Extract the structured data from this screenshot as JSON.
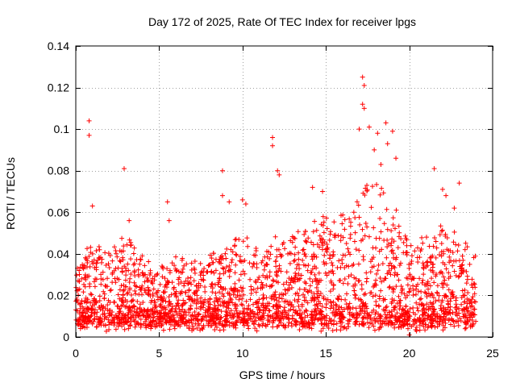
{
  "chart_data": {
    "type": "scatter",
    "title": "Day 172 of 2025, Rate Of TEC Index for receiver lpgs",
    "xlabel": "GPS time / hours",
    "ylabel": "ROTI / TECUs",
    "xlim": [
      0,
      25
    ],
    "ylim": [
      0,
      0.14
    ],
    "xticks": [
      0,
      5,
      10,
      15,
      20,
      25
    ],
    "yticks": [
      0,
      0.02,
      0.04,
      0.06,
      0.08,
      0.1,
      0.12,
      0.14
    ],
    "xtick_labels": [
      "0",
      "5",
      "10",
      "15",
      "20",
      "25"
    ],
    "ytick_labels": [
      "0",
      "0.02",
      "0.04",
      "0.06",
      "0.08",
      "0.1",
      "0.12",
      "0.14"
    ],
    "grid": true,
    "marker": "plus",
    "color": "#ff0000",
    "envelope": {
      "description": "approximate upper extent of the dense point cloud (hours, TECU)",
      "x": [
        0,
        1,
        2,
        3,
        4,
        5,
        6,
        7,
        8,
        9,
        10,
        11,
        12,
        13,
        14,
        15,
        16,
        17,
        18,
        19,
        20,
        21,
        22,
        23,
        24
      ],
      "y": [
        0.03,
        0.045,
        0.04,
        0.05,
        0.035,
        0.03,
        0.035,
        0.032,
        0.035,
        0.04,
        0.045,
        0.04,
        0.045,
        0.047,
        0.05,
        0.06,
        0.055,
        0.07,
        0.075,
        0.065,
        0.04,
        0.045,
        0.05,
        0.045,
        0.035
      ],
      "lower": 0.004,
      "median": 0.015
    },
    "outliers": [
      {
        "x": 0.8,
        "y": 0.104
      },
      {
        "x": 0.8,
        "y": 0.097
      },
      {
        "x": 1.0,
        "y": 0.063
      },
      {
        "x": 2.9,
        "y": 0.081
      },
      {
        "x": 3.2,
        "y": 0.056
      },
      {
        "x": 5.5,
        "y": 0.065
      },
      {
        "x": 5.6,
        "y": 0.056
      },
      {
        "x": 8.8,
        "y": 0.08
      },
      {
        "x": 8.8,
        "y": 0.068
      },
      {
        "x": 9.2,
        "y": 0.065
      },
      {
        "x": 10.0,
        "y": 0.066
      },
      {
        "x": 10.2,
        "y": 0.064
      },
      {
        "x": 11.8,
        "y": 0.096
      },
      {
        "x": 11.8,
        "y": 0.092
      },
      {
        "x": 12.1,
        "y": 0.08
      },
      {
        "x": 12.2,
        "y": 0.078
      },
      {
        "x": 14.2,
        "y": 0.072
      },
      {
        "x": 14.8,
        "y": 0.07
      },
      {
        "x": 17.2,
        "y": 0.125
      },
      {
        "x": 17.3,
        "y": 0.121
      },
      {
        "x": 17.2,
        "y": 0.112
      },
      {
        "x": 17.3,
        "y": 0.11
      },
      {
        "x": 17.0,
        "y": 0.1
      },
      {
        "x": 17.6,
        "y": 0.101
      },
      {
        "x": 18.1,
        "y": 0.098
      },
      {
        "x": 18.6,
        "y": 0.103
      },
      {
        "x": 19.0,
        "y": 0.099
      },
      {
        "x": 18.7,
        "y": 0.093
      },
      {
        "x": 19.2,
        "y": 0.086
      },
      {
        "x": 18.3,
        "y": 0.083
      },
      {
        "x": 17.9,
        "y": 0.09
      },
      {
        "x": 21.5,
        "y": 0.081
      },
      {
        "x": 22.0,
        "y": 0.071
      },
      {
        "x": 22.2,
        "y": 0.068
      },
      {
        "x": 23.0,
        "y": 0.074
      },
      {
        "x": 22.7,
        "y": 0.062
      },
      {
        "x": 20.0,
        "y": 0.001
      }
    ]
  }
}
